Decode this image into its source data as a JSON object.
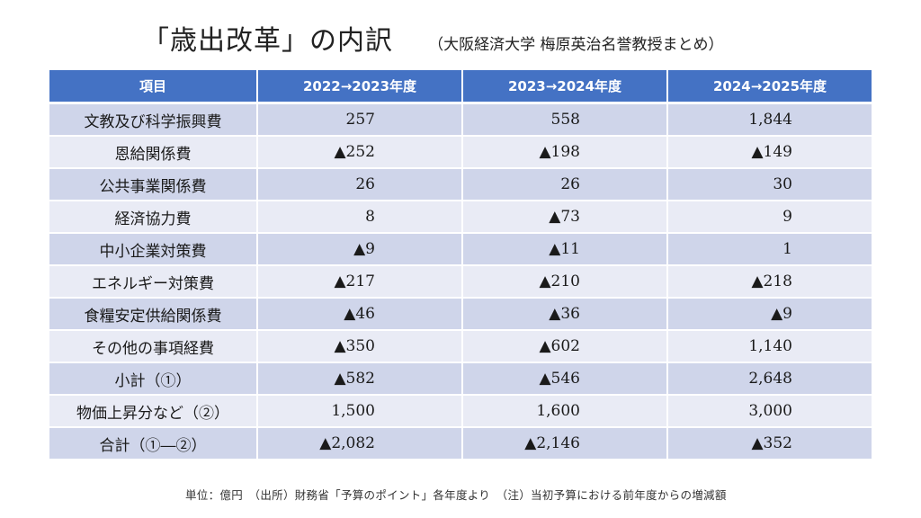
{
  "title": "「歳出改革」の内訳",
  "subtitle": "（大阪経済大学 梅原英治名誉教授まとめ）",
  "table": {
    "headers": [
      "項目",
      "2022→2023年度",
      "2023→2024年度",
      "2024→2025年度"
    ],
    "rows": [
      [
        "文教及び科学振興費",
        "257",
        "558",
        "1,844"
      ],
      [
        "恩給関係費",
        "▲252",
        "▲198",
        "▲149"
      ],
      [
        "公共事業関係費",
        "26",
        "26",
        "30"
      ],
      [
        "経済協力費",
        "8",
        "▲73",
        "9"
      ],
      [
        "中小企業対策費",
        "▲9",
        "▲11",
        "1"
      ],
      [
        "エネルギー対策費",
        "▲217",
        "▲210",
        "▲218"
      ],
      [
        "食糧安定供給関係費",
        "▲46",
        "▲36",
        "▲9"
      ],
      [
        "その他の事項経費",
        "▲350",
        "▲602",
        "1,140"
      ],
      [
        "小計（①）",
        "▲582",
        "▲546",
        "2,648"
      ],
      [
        "物価上昇分など（②）",
        "1,500",
        "1,600",
        "3,000"
      ],
      [
        "合計（①―②）",
        "▲2,082",
        "▲2,146",
        "▲352"
      ]
    ]
  },
  "footnote": "単位：億円　（出所）財務省「予算のポイント」各年度より　（注）当初予算における前年度からの増減額",
  "colors": {
    "header_bg": "#4472c4",
    "row_dark": "#cfd5ea",
    "row_light": "#e9ebf5"
  }
}
